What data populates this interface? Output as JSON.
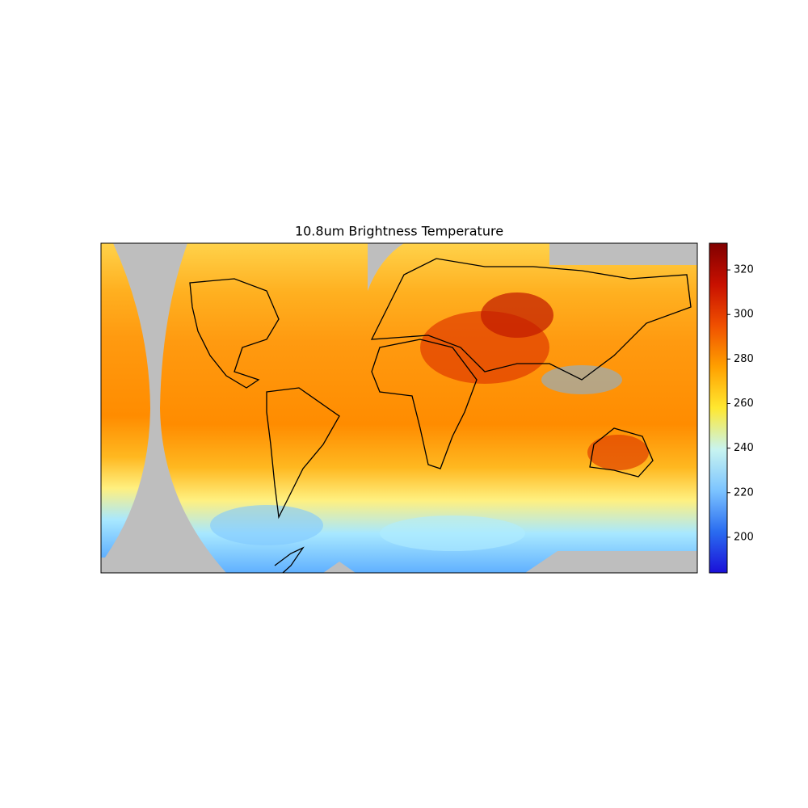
{
  "title": "10.8um Brightness Temperature",
  "colorbar": {
    "lim": [
      184,
      332
    ],
    "ticks": [
      200,
      220,
      240,
      260,
      280,
      300,
      320
    ],
    "colors": [
      "#1a10d8",
      "#2a6cf0",
      "#7cc4ff",
      "#c8f4f0",
      "#ffe830",
      "#ffa000",
      "#f05000",
      "#c81000",
      "#800000"
    ]
  }
}
